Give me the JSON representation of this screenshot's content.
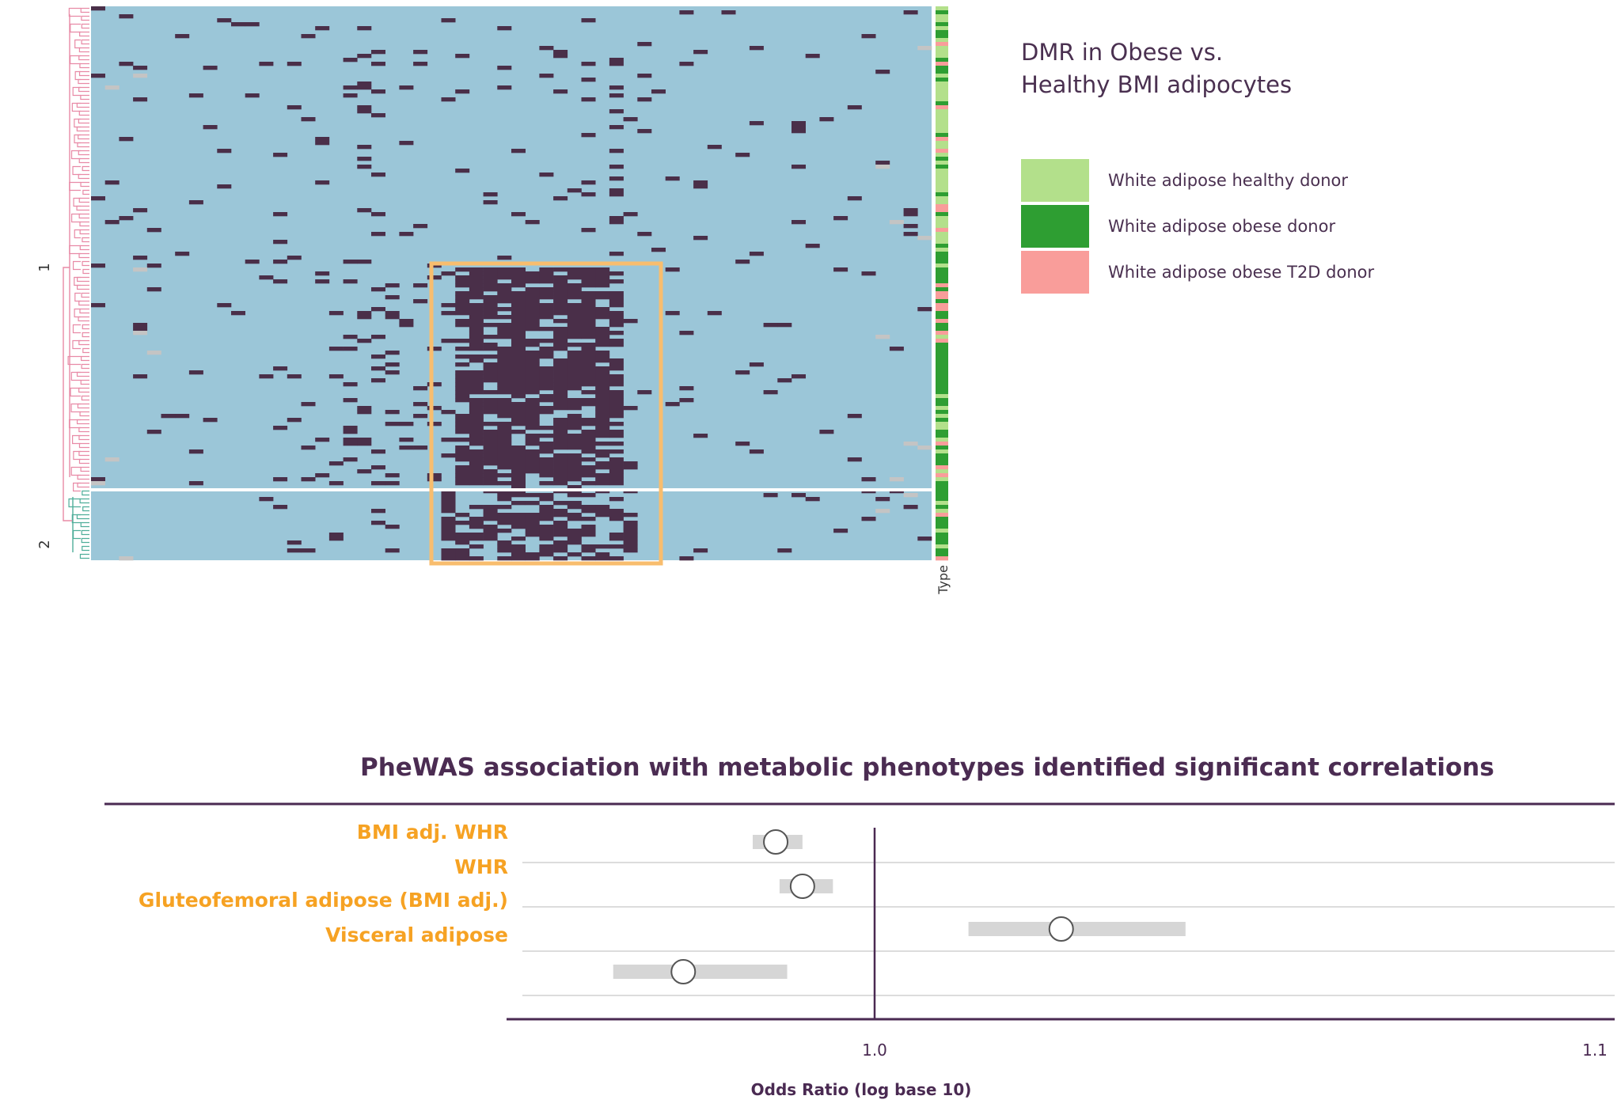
{
  "heatmap": {
    "row_cluster_labels": [
      "1",
      "2"
    ],
    "annotation_label": "Type",
    "legend_title_lines": [
      "DMR in Obese vs.",
      "Healthy BMI adipocytes"
    ],
    "legend": [
      {
        "label": "White adipose healthy donor",
        "color": "#b3e08b"
      },
      {
        "label": "White adipose obese donor",
        "color": "#2e9e32"
      },
      {
        "label": "White adipose obese T2D donor",
        "color": "#f99d9a"
      }
    ],
    "colors": {
      "background": "#9bc6d8",
      "methylated": "#4a2f49",
      "missing": "#c4c4c4",
      "highlight": "#f8bd6e",
      "dendro_cluster1": "#e88aa6",
      "dendro_cluster2": "#4fae9a"
    }
  },
  "chart_data": {
    "type": "scatter",
    "title": "PheWAS association with metabolic phenotypes identified significant correlations",
    "xlabel": "Odds Ratio (log base 10)",
    "xscale": "log",
    "x_tick_labels": [
      "1.0",
      "1.1"
    ],
    "reference_line": 1.0,
    "categories": [
      "BMI adj. WHR",
      "WHR",
      "Gluteofemoral adipose (BMI adj.)",
      "Visceral adipose"
    ],
    "estimates": [
      0.987,
      0.9905,
      1.025,
      0.975
    ],
    "ci_low": [
      0.984,
      0.9875,
      1.0125,
      0.966
    ],
    "ci_high": [
      0.9905,
      0.9945,
      1.042,
      0.9885
    ],
    "colors": {
      "label": "#f6a223",
      "ci": "#d6d6d6",
      "axis": "#4a2a52"
    }
  }
}
